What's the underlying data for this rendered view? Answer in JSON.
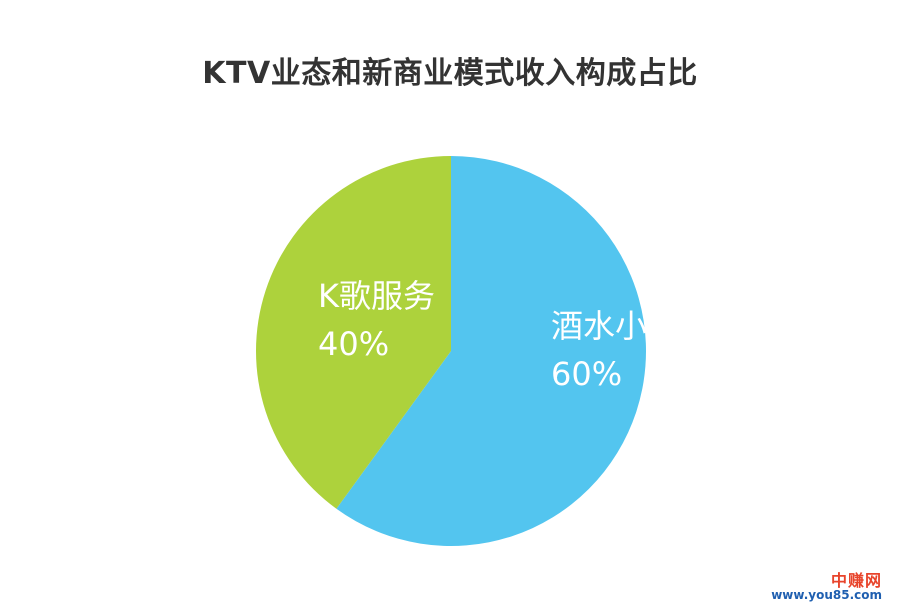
{
  "chart_data": {
    "type": "pie",
    "title": "KTV业态和新商业模式收入构成占比",
    "categories": [
      "酒水小食",
      "K歌服务"
    ],
    "values": [
      60,
      40
    ],
    "value_labels": [
      "60%",
      "40%"
    ],
    "colors": [
      "#53c5ef",
      "#add23c"
    ],
    "start": "12 o'clock",
    "direction": "clockwise"
  },
  "watermark": {
    "line1": "中赚网",
    "line2": "www.you85.com"
  }
}
